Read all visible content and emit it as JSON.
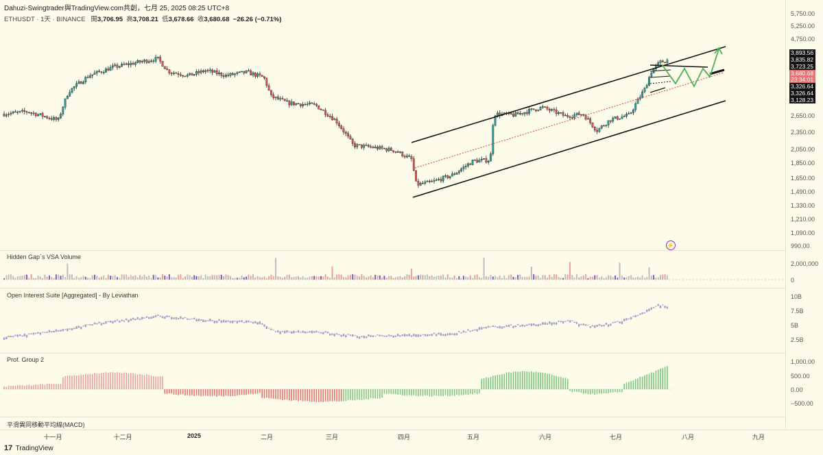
{
  "header": {
    "title": "Dahuzi-Swingtrader與TradingView.com共創，七月 25, 2025 08:25 UTC+8",
    "symbol": "ETHUSDT · 1天 · BINANCE",
    "open_label": "開",
    "open": "3,706.95",
    "high_label": "高",
    "high": "3,708.21",
    "low_label": "低",
    "low": "3,678.66",
    "close_label": "收",
    "close": "3,680.68",
    "change": "−26.26 (−0.71%)"
  },
  "price_axis": {
    "ticks": [
      "5,750.00",
      "5,250.00",
      "4,750.00",
      "3,893.56",
      "3,835.82",
      "3,723.25",
      "3,680.68",
      "23:34:01",
      "3,326.64",
      "3,326.64",
      "3,128.23",
      "2,650.00",
      "2,350.00",
      "2,050.00",
      "1,850.00",
      "1,650.00",
      "1,490.00",
      "1,330.00",
      "1,210.00",
      "1,090.00",
      "990.00"
    ],
    "tagged": [
      "3,893.56",
      "3,835.82",
      "3,723.25",
      "3,680.68",
      "23:34:01",
      "3,326.64",
      "3,326.64",
      "3,128.23"
    ]
  },
  "panes": {
    "volume": {
      "label": "Hidden Gap`s VSA Volume",
      "ticks": [
        "2,000,000",
        "0"
      ]
    },
    "oi": {
      "label": "Open Interest Suite [Aggregated] - By Leviathan",
      "ticks": [
        "10B",
        "7.5B",
        "5B",
        "2.5B"
      ]
    },
    "prof": {
      "label": "Prof. Group 2",
      "ticks": [
        "1,000.00",
        "500.00",
        "0.00",
        "−500.00"
      ]
    },
    "macd": {
      "label": "平滑異同移動平均線(MACD)"
    }
  },
  "time_axis": [
    "十一月",
    "十二月",
    "2025",
    "二月",
    "三月",
    "四月",
    "五月",
    "六月",
    "七月",
    "八月",
    "九月"
  ],
  "footer": {
    "brand": "TradingView"
  },
  "icons": {
    "alert": "lightning-bolt-icon",
    "logo": "tradingview-logo-icon"
  },
  "colors": {
    "up": "#26a69a",
    "down": "#ef5350",
    "projection": "#4caf50",
    "channel": "#111111",
    "midline": "#e53935",
    "oi": "#9e9ec8"
  },
  "chart_data": [
    {
      "type": "candlestick",
      "title": "ETHUSDT · 1天 · BINANCE",
      "x_unit": "month",
      "x": [
        "Oct 2024",
        "Nov 2024",
        "Dec 2024",
        "Jan 2025",
        "Feb 2025",
        "Mar 2025",
        "Apr 2025",
        "May 2025",
        "Jun 2025",
        "Jul 2025"
      ],
      "y_close": [
        2520,
        2450,
        3700,
        3350,
        2700,
        2100,
        1800,
        2520,
        2500,
        3680
      ],
      "ylim": [
        990,
        5750
      ],
      "log_scale": true,
      "last": {
        "open": 3706.95,
        "high": 3708.21,
        "low": 3678.66,
        "close": 3680.68
      },
      "annotations": [
        "ascending channel",
        "projection zigzag"
      ]
    },
    {
      "type": "bar",
      "title": "Hidden Gap`s VSA Volume",
      "ylim": [
        0,
        2000000
      ]
    },
    {
      "type": "line",
      "title": "Open Interest Suite [Aggregated] - By Leviathan",
      "ylim": [
        2.5,
        10
      ],
      "y_unit": "B"
    },
    {
      "type": "bar",
      "title": "Prof. Group 2",
      "ylim": [
        -500,
        1000
      ]
    }
  ]
}
